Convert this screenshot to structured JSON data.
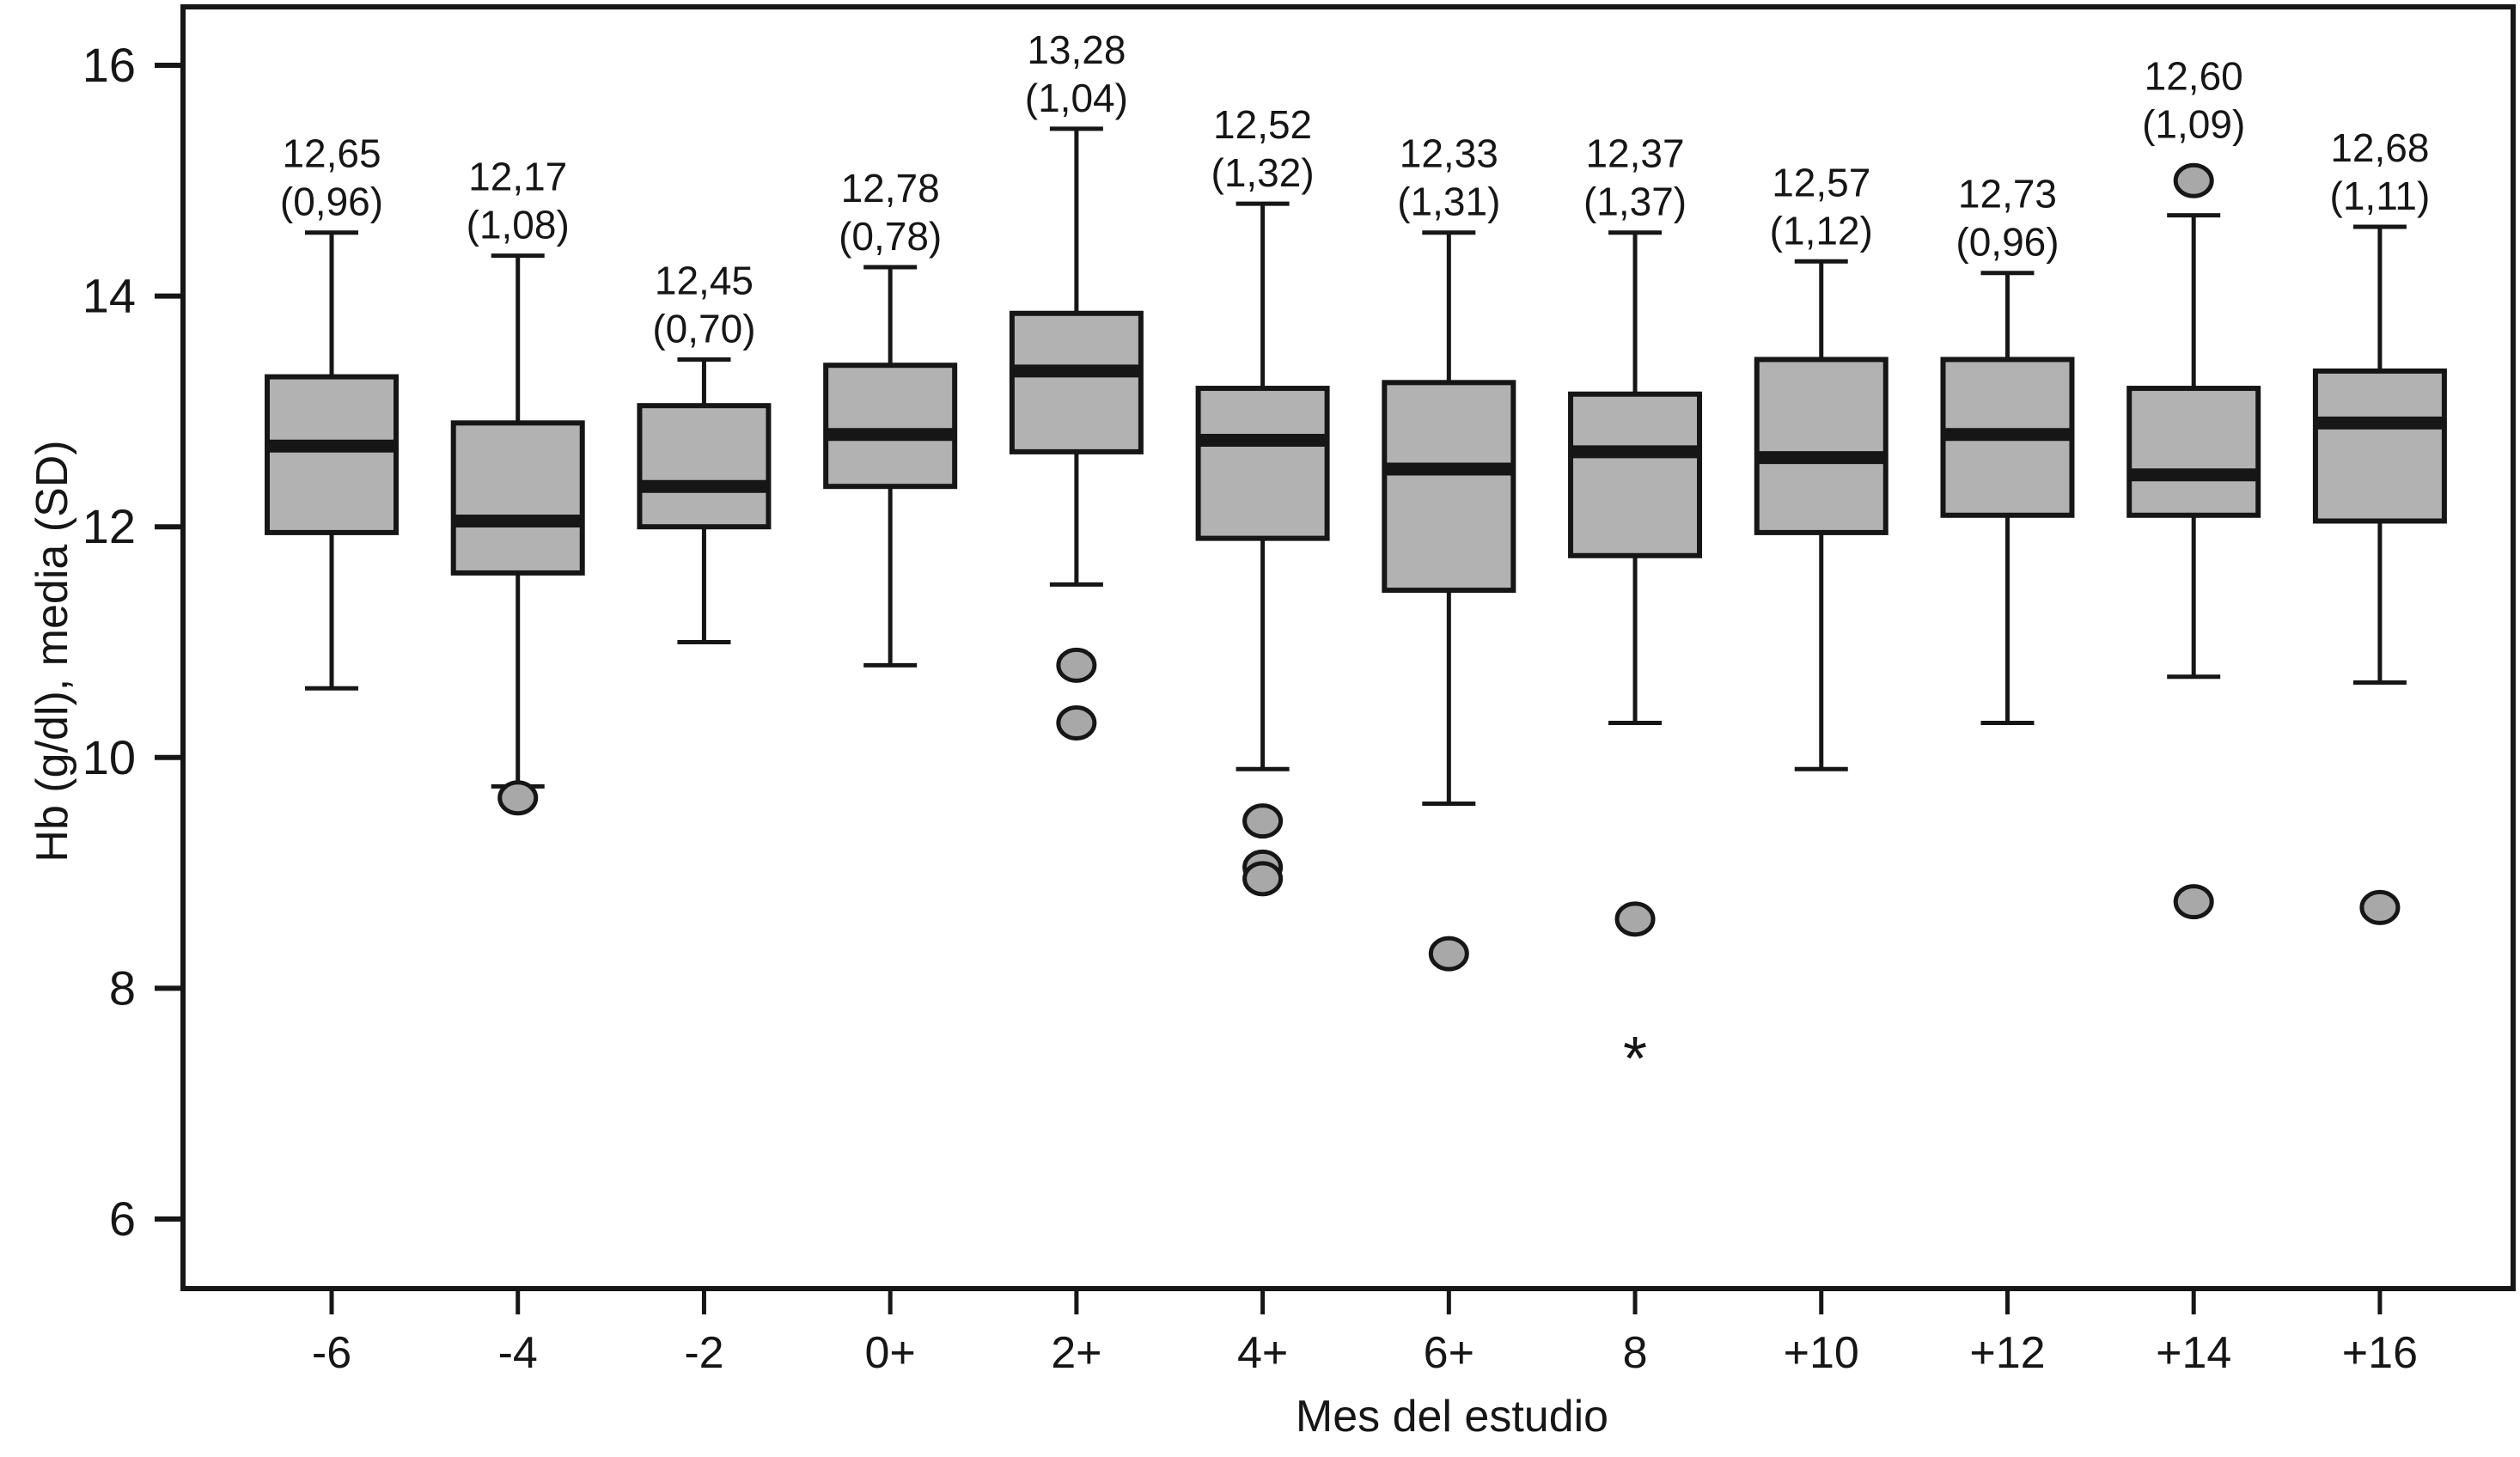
{
  "chart_data": {
    "type": "boxplot",
    "xlabel": "Mes del estudio",
    "ylabel": "Hb (g/dl), media (SD)",
    "ylim": [
      5.4,
      16.5
    ],
    "yticks": [
      6,
      8,
      10,
      12,
      14,
      16
    ],
    "grid": false,
    "legend": "none",
    "categories": [
      "-6",
      "-4",
      "-2",
      "0+",
      "2+",
      "4+",
      "6+",
      "8",
      "+10",
      "+12",
      "+14",
      "+16"
    ],
    "annotation_style": "mean (SD) printed above each upper whisker, comma decimal separator",
    "boxes": [
      {
        "category": "-6",
        "mean_label": "12,65",
        "sd_label": "(0,96)",
        "mean": 12.65,
        "sd": 0.96,
        "whisker_low": 10.6,
        "q1": 11.95,
        "median": 12.7,
        "q3": 13.3,
        "whisker_high": 14.55,
        "outliers": [],
        "star_outliers": []
      },
      {
        "category": "-4",
        "mean_label": "12,17",
        "sd_label": "(1,08)",
        "mean": 12.17,
        "sd": 1.08,
        "whisker_low": 9.75,
        "q1": 11.6,
        "median": 12.05,
        "q3": 12.9,
        "whisker_high": 14.35,
        "outliers": [
          9.65
        ],
        "star_outliers": []
      },
      {
        "category": "-2",
        "mean_label": "12,45",
        "sd_label": "(0,70)",
        "mean": 12.45,
        "sd": 0.7,
        "whisker_low": 11.0,
        "q1": 12.0,
        "median": 12.35,
        "q3": 13.05,
        "whisker_high": 13.45,
        "outliers": [],
        "star_outliers": []
      },
      {
        "category": "0+",
        "mean_label": "12,78",
        "sd_label": "(0,78)",
        "mean": 12.78,
        "sd": 0.78,
        "whisker_low": 10.8,
        "q1": 12.35,
        "median": 12.8,
        "q3": 13.4,
        "whisker_high": 14.25,
        "outliers": [],
        "star_outliers": []
      },
      {
        "category": "2+",
        "mean_label": "13,28",
        "sd_label": "(1,04)",
        "mean": 13.28,
        "sd": 1.04,
        "whisker_low": 11.5,
        "q1": 12.65,
        "median": 13.35,
        "q3": 13.85,
        "whisker_high": 15.45,
        "outliers": [
          10.8,
          10.3
        ],
        "star_outliers": []
      },
      {
        "category": "4+",
        "mean_label": "12,52",
        "sd_label": "(1,32)",
        "mean": 12.52,
        "sd": 1.32,
        "whisker_low": 9.9,
        "q1": 11.9,
        "median": 12.75,
        "q3": 13.2,
        "whisker_high": 14.8,
        "outliers": [
          9.45,
          9.05,
          8.95
        ],
        "star_outliers": []
      },
      {
        "category": "6+",
        "mean_label": "12,33",
        "sd_label": "(1,31)",
        "mean": 12.33,
        "sd": 1.31,
        "whisker_low": 9.6,
        "q1": 11.45,
        "median": 12.5,
        "q3": 13.25,
        "whisker_high": 14.55,
        "outliers": [
          8.3
        ],
        "star_outliers": []
      },
      {
        "category": "8",
        "mean_label": "12,37",
        "sd_label": "(1,37)",
        "mean": 12.37,
        "sd": 1.37,
        "whisker_low": 10.3,
        "q1": 11.75,
        "median": 12.65,
        "q3": 13.15,
        "whisker_high": 14.55,
        "outliers": [
          8.6
        ],
        "star_outliers": [
          7.4
        ]
      },
      {
        "category": "+10",
        "mean_label": "12,57",
        "sd_label": "(1,12)",
        "mean": 12.57,
        "sd": 1.12,
        "whisker_low": 9.9,
        "q1": 11.95,
        "median": 12.6,
        "q3": 13.45,
        "whisker_high": 14.3,
        "outliers": [],
        "star_outliers": []
      },
      {
        "category": "+12",
        "mean_label": "12,73",
        "sd_label": "(0,96)",
        "mean": 12.73,
        "sd": 0.96,
        "whisker_low": 10.3,
        "q1": 12.1,
        "median": 12.8,
        "q3": 13.45,
        "whisker_high": 14.2,
        "outliers": [],
        "star_outliers": []
      },
      {
        "category": "+14",
        "mean_label": "12,60",
        "sd_label": "(1,09)",
        "mean": 12.6,
        "sd": 1.09,
        "whisker_low": 10.7,
        "q1": 12.1,
        "median": 12.45,
        "q3": 13.2,
        "whisker_high": 14.7,
        "outliers": [
          15.0,
          8.75
        ],
        "star_outliers": []
      },
      {
        "category": "+16",
        "mean_label": "12,68",
        "sd_label": "(1,11)",
        "mean": 12.68,
        "sd": 1.11,
        "whisker_low": 10.65,
        "q1": 12.05,
        "median": 12.9,
        "q3": 13.35,
        "whisker_high": 14.6,
        "outliers": [
          8.7
        ],
        "star_outliers": []
      }
    ],
    "colors": {
      "box_fill": "#b2b2b2",
      "outlier_fill": "#a8a8a8",
      "stroke": "#161616",
      "background": "#ffffff"
    }
  }
}
